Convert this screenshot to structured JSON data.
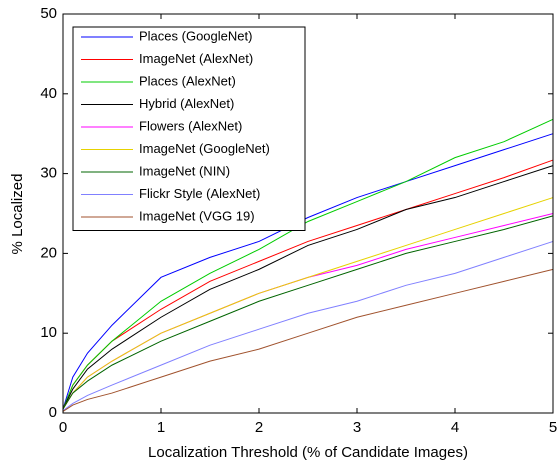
{
  "chart_data": {
    "type": "line",
    "xlabel": "Localization Threshold (% of Candidate Images)",
    "ylabel": "% Localized",
    "xlim": [
      0,
      5
    ],
    "ylim": [
      0,
      50
    ],
    "xticks": [
      0,
      1,
      2,
      3,
      4,
      5
    ],
    "yticks": [
      0,
      10,
      20,
      30,
      40,
      50
    ],
    "legend": "upper left",
    "x": [
      0,
      0.1,
      0.25,
      0.5,
      1,
      1.5,
      2,
      2.5,
      3,
      3.5,
      4,
      4.5,
      5
    ],
    "series": [
      {
        "name": "Places (GoogleNet)",
        "color": "#0000ff",
        "values": [
          0.5,
          4.5,
          7.5,
          11,
          17,
          19.5,
          21.5,
          24.5,
          27,
          29,
          31,
          33,
          35
        ]
      },
      {
        "name": "ImageNet (AlexNet)",
        "color": "#ff0000",
        "values": [
          0.5,
          3.5,
          6,
          9,
          13,
          16.5,
          19,
          21.5,
          23.5,
          25.5,
          27.5,
          29.5,
          31.7
        ]
      },
      {
        "name": "Places (AlexNet)",
        "color": "#00cc00",
        "values": [
          0.5,
          3.5,
          6,
          9,
          14,
          17.5,
          20.5,
          24,
          26.5,
          29,
          32,
          34,
          36.8
        ]
      },
      {
        "name": "Hybrid (AlexNet)",
        "color": "#000000",
        "values": [
          0.5,
          3,
          5.5,
          8,
          12,
          15.5,
          18,
          21,
          23,
          25.5,
          27,
          29,
          31
        ]
      },
      {
        "name": "Flowers (AlexNet)",
        "color": "#ff00ff",
        "values": [
          0.5,
          2.5,
          4.5,
          6.5,
          10,
          12.5,
          15,
          17,
          18.5,
          20.5,
          22,
          23.5,
          25
        ]
      },
      {
        "name": "ImageNet (GoogleNet)",
        "color": "#e6d200",
        "values": [
          0.5,
          2.5,
          4.5,
          6.5,
          10,
          12.5,
          15,
          17,
          19,
          21,
          23,
          25,
          27
        ]
      },
      {
        "name": "ImageNet (NIN)",
        "color": "#006400",
        "values": [
          0.5,
          2.5,
          4,
          6,
          9,
          11.5,
          14,
          16,
          18,
          20,
          21.5,
          23,
          24.7
        ]
      },
      {
        "name": "Flickr Style (AlexNet)",
        "color": "#8080ff",
        "values": [
          0.3,
          1.2,
          2.2,
          3.5,
          6,
          8.5,
          10.5,
          12.5,
          14,
          16,
          17.5,
          19.5,
          21.5
        ]
      },
      {
        "name": "ImageNet (VGG 19)",
        "color": "#a0522d",
        "values": [
          0.2,
          1,
          1.7,
          2.5,
          4.5,
          6.5,
          8,
          10,
          12,
          13.5,
          15,
          16.5,
          18
        ]
      }
    ]
  }
}
